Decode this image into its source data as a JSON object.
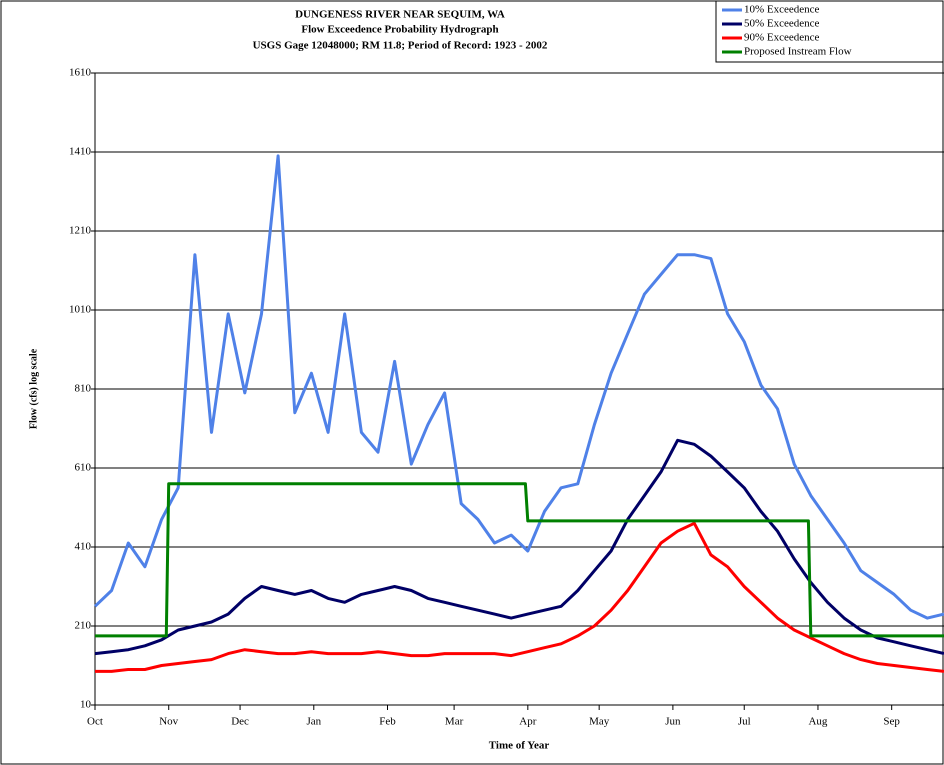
{
  "chart_data": {
    "type": "line",
    "title": "DUNGENESS RIVER NEAR SEQUIM, WA",
    "subtitle": [
      "Flow Exceedence Probability Hydrograph",
      "USGS Gage 12048000; RM 11.8; Period of Record: 1923 - 2002"
    ],
    "x_label": "Time of Year",
    "y_label": "Flow (cfs) log scale",
    "xlim": [
      0,
      357
    ],
    "xticks": [
      {
        "value": 0,
        "label": "Oct"
      },
      {
        "value": 31,
        "label": "Nov"
      },
      {
        "value": 61,
        "label": "Dec"
      },
      {
        "value": 92,
        "label": "Jan"
      },
      {
        "value": 123,
        "label": "Feb"
      },
      {
        "value": 151,
        "label": "Mar"
      },
      {
        "value": 182,
        "label": "Apr"
      },
      {
        "value": 212,
        "label": "May"
      },
      {
        "value": 243,
        "label": "Jun"
      },
      {
        "value": 273,
        "label": "Jul"
      },
      {
        "value": 304,
        "label": "Aug"
      },
      {
        "value": 335,
        "label": "Sep"
      }
    ],
    "ylim": [
      10,
      1610
    ],
    "yticks": [
      10,
      210,
      410,
      610,
      810,
      1010,
      1210,
      1410,
      1610
    ],
    "grid": true,
    "legend": "top-right",
    "x": [
      0,
      7,
      14,
      21,
      28,
      35,
      42,
      49,
      56,
      63,
      70,
      77,
      84,
      91,
      98,
      105,
      112,
      119,
      126,
      133,
      140,
      147,
      154,
      161,
      168,
      175,
      182,
      189,
      196,
      203,
      210,
      217,
      224,
      231,
      238,
      245,
      252,
      259,
      266,
      273,
      280,
      287,
      294,
      301,
      308,
      315,
      322,
      329,
      336,
      343,
      350,
      357
    ],
    "series": [
      {
        "name": "10% Exceedence",
        "color": "#4f81e8",
        "values": [
          260,
          300,
          420,
          360,
          480,
          560,
          1150,
          700,
          1000,
          800,
          1000,
          1400,
          750,
          850,
          700,
          1000,
          700,
          650,
          880,
          620,
          720,
          800,
          520,
          480,
          420,
          440,
          400,
          500,
          560,
          570,
          720,
          850,
          950,
          1050,
          1100,
          1150,
          1150,
          1140,
          1000,
          930,
          820,
          760,
          620,
          540,
          480,
          420,
          350,
          320,
          290,
          250,
          230,
          240
        ]
      },
      {
        "name": "50% Exceedence",
        "color": "#000066",
        "values": [
          140,
          145,
          150,
          160,
          175,
          200,
          210,
          220,
          240,
          280,
          310,
          300,
          290,
          300,
          280,
          270,
          290,
          300,
          310,
          300,
          280,
          270,
          260,
          250,
          240,
          230,
          240,
          250,
          260,
          300,
          350,
          400,
          480,
          540,
          600,
          680,
          670,
          640,
          600,
          560,
          500,
          450,
          380,
          320,
          270,
          230,
          200,
          180,
          170,
          160,
          150,
          140
        ]
      },
      {
        "name": "90% Exceedence",
        "color": "#ff0000",
        "values": [
          95,
          95,
          100,
          100,
          110,
          115,
          120,
          125,
          140,
          150,
          145,
          140,
          140,
          145,
          140,
          140,
          140,
          145,
          140,
          135,
          135,
          140,
          140,
          140,
          140,
          135,
          145,
          155,
          165,
          185,
          210,
          250,
          300,
          360,
          420,
          450,
          470,
          390,
          360,
          310,
          270,
          230,
          200,
          180,
          160,
          140,
          125,
          115,
          110,
          105,
          100,
          95
        ]
      },
      {
        "name": "Proposed Instream Flow",
        "color": "#008000",
        "x": [
          0,
          30,
          31,
          181,
          182,
          300,
          301,
          357
        ],
        "values": [
          185,
          185,
          570,
          570,
          476,
          476,
          185,
          185
        ]
      }
    ]
  }
}
